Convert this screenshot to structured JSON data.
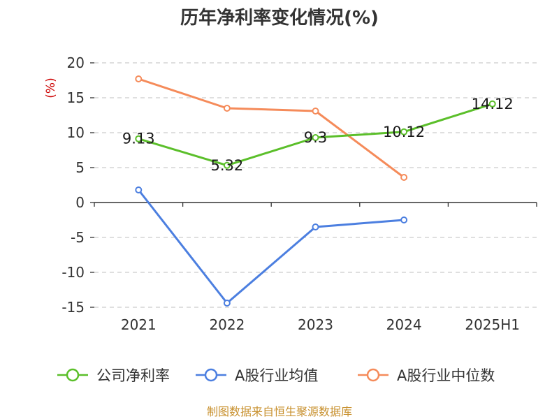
{
  "chart_data": {
    "type": "line",
    "title": "历年净利率变化情况(%)",
    "ylabel": "(%)",
    "categories": [
      "2021",
      "2022",
      "2023",
      "2024",
      "2025H1"
    ],
    "ylim": [
      -15,
      20
    ],
    "yticks": [
      20,
      15,
      10,
      5,
      0,
      -5,
      -10,
      -15
    ],
    "ytick_labels": [
      "20",
      "15",
      "10",
      "5",
      "0",
      "-5",
      "-10",
      "-15"
    ],
    "grid": "dashed horizontal",
    "legend_position": "bottom",
    "series": [
      {
        "name": "公司净利率",
        "color": "#5bbf2a",
        "values": [
          9.13,
          5.32,
          9.3,
          10.12,
          14.12
        ],
        "labels": [
          "9.13",
          "5.32",
          "9.3",
          "10.12",
          "14.12"
        ]
      },
      {
        "name": "A股行业均值",
        "color": "#4c7fe0",
        "values": [
          1.8,
          -14.4,
          -3.5,
          -2.5,
          null
        ]
      },
      {
        "name": "A股行业中位数",
        "color": "#f58b5a",
        "values": [
          17.7,
          13.5,
          13.1,
          3.6,
          null
        ]
      }
    ]
  },
  "footer": {
    "source": "制图数据来自恒生聚源数据库"
  }
}
